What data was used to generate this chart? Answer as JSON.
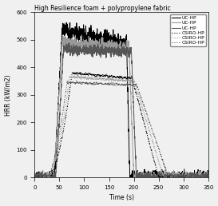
{
  "title": "High Resilience foam + polypropylene fabric",
  "xlabel": "Time (s)",
  "ylabel": "HRR (kW/m2)",
  "xlim": [
    0,
    350
  ],
  "ylim": [
    0,
    600
  ],
  "xticks": [
    0,
    50,
    100,
    150,
    200,
    250,
    300,
    350
  ],
  "yticks": [
    0,
    100,
    200,
    300,
    400,
    500,
    600
  ],
  "uc_colors": [
    "#000000",
    "#999999",
    "#555555"
  ],
  "csiro_colors": [
    "#000000",
    "#999999",
    "#555555"
  ],
  "background_color": "#f0f0f0",
  "figsize": [
    2.73,
    2.58
  ],
  "dpi": 100
}
